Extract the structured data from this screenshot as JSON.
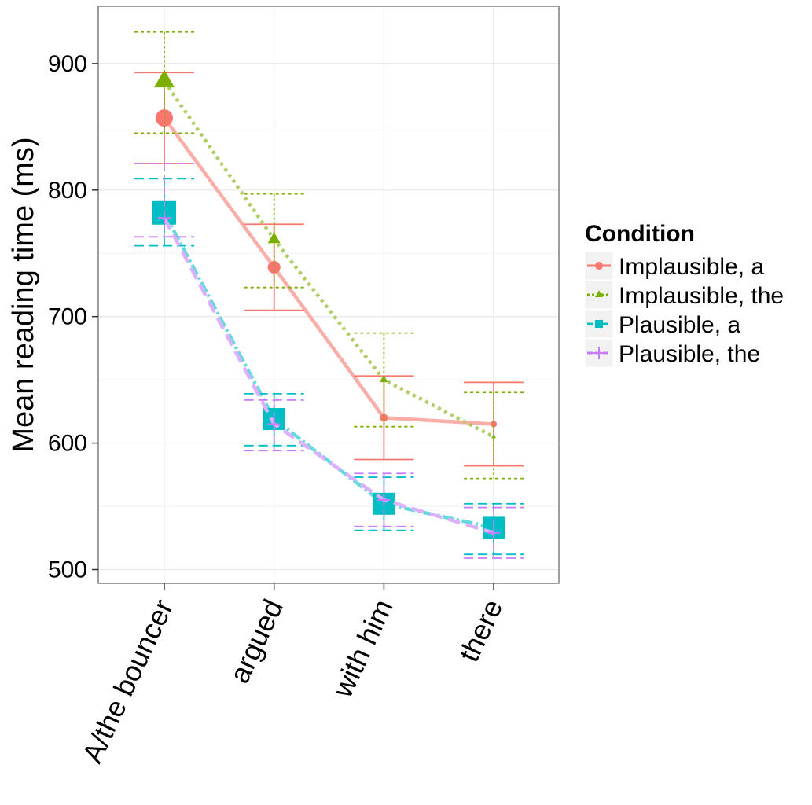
{
  "chart_data": {
    "type": "line",
    "title": "",
    "xlabel": "",
    "ylabel": "Mean reading time (ms)",
    "categories": [
      "A/the bouncer",
      "argued",
      "with him",
      "there"
    ],
    "y_ticks": [
      500,
      600,
      700,
      800,
      900
    ],
    "y_tick_labels": [
      "500",
      "600",
      "700",
      "800",
      "900"
    ],
    "ylim": [
      490,
      946
    ],
    "grid": true,
    "legend": {
      "title": "Condition",
      "position": "right"
    },
    "series": [
      {
        "name": "Implausible, a",
        "color": "#F8766D",
        "marker": "circle",
        "line_style": "solid",
        "values": [
          857,
          739,
          620,
          615
        ],
        "error_low": [
          821,
          705,
          587,
          582
        ],
        "error_high": [
          893,
          773,
          653,
          648
        ],
        "point_sizes": [
          11,
          8,
          5,
          4
        ]
      },
      {
        "name": "Implausible, the",
        "color": "#7CAE00",
        "marker": "triangle",
        "line_style": "dotted",
        "values": [
          886,
          761,
          650,
          605
        ],
        "error_low": [
          845,
          723,
          613,
          572
        ],
        "error_high": [
          925,
          797,
          687,
          640
        ],
        "point_sizes": [
          13,
          8,
          5,
          3
        ]
      },
      {
        "name": "Plausible, a",
        "color": "#00BFC4",
        "marker": "square",
        "line_style": "dotdash",
        "values": [
          782,
          619,
          552,
          533
        ],
        "error_low": [
          756,
          598,
          531,
          512
        ],
        "error_high": [
          809,
          639,
          573,
          552
        ],
        "point_sizes": [
          15,
          14,
          14,
          14
        ]
      },
      {
        "name": "Plausible, the",
        "color": "#C77CFF",
        "marker": "cross",
        "line_style": "longdash",
        "values": [
          778,
          615,
          555,
          529
        ],
        "error_low": [
          763,
          594,
          534,
          509
        ],
        "error_high": [
          821,
          634,
          576,
          549
        ],
        "point_sizes": [
          8,
          8,
          8,
          8
        ]
      }
    ]
  }
}
